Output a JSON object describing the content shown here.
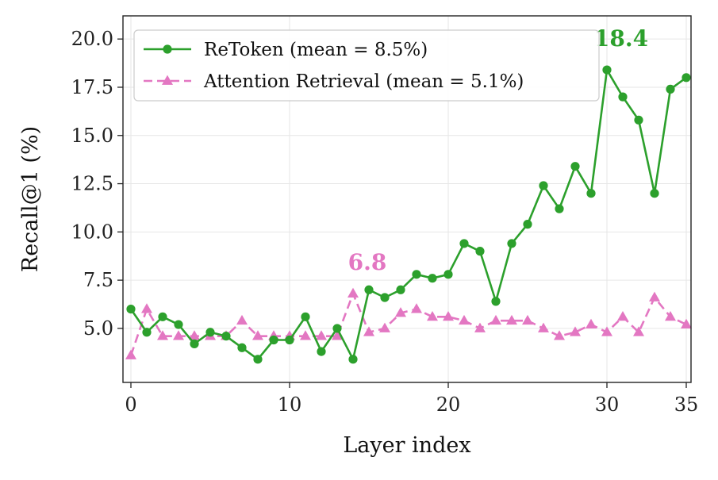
{
  "chart_data": {
    "type": "line",
    "xlabel": "Layer index",
    "ylabel": "Recall@1 (%)",
    "xlim": [
      -0.5,
      35.3
    ],
    "ylim": [
      2.2,
      21.2
    ],
    "xticks": [
      0,
      10,
      20,
      30,
      35
    ],
    "yticks": [
      5.0,
      7.5,
      10.0,
      12.5,
      15.0,
      17.5,
      20.0
    ],
    "xtick_labels": [
      "0",
      "10",
      "20",
      "30",
      "35"
    ],
    "ytick_labels": [
      "5.0",
      "7.5",
      "10.0",
      "12.5",
      "15.0",
      "17.5",
      "20.0"
    ],
    "grid": true,
    "legend_position": "top-left",
    "x": [
      0,
      1,
      2,
      3,
      4,
      5,
      6,
      7,
      8,
      9,
      10,
      11,
      12,
      13,
      14,
      15,
      16,
      17,
      18,
      19,
      20,
      21,
      22,
      23,
      24,
      25,
      26,
      27,
      28,
      29,
      30,
      31,
      32,
      33,
      34,
      35
    ],
    "series": [
      {
        "name": "ReToken (mean = 8.5%)",
        "color": "#2ca02c",
        "marker": "circle",
        "line_style": "solid",
        "values": [
          6.0,
          4.8,
          5.6,
          5.2,
          4.2,
          4.8,
          4.6,
          4.0,
          3.4,
          4.4,
          4.4,
          5.6,
          3.8,
          5.0,
          3.4,
          7.0,
          6.6,
          7.0,
          7.8,
          7.6,
          7.8,
          9.4,
          9.0,
          6.4,
          9.4,
          10.4,
          12.4,
          11.2,
          13.4,
          12.0,
          18.4,
          17.0,
          15.8,
          12.0,
          17.4,
          18.0
        ]
      },
      {
        "name": "Attention Retrieval (mean = 5.1%)",
        "color": "#e377c2",
        "marker": "triangle",
        "line_style": "dashed",
        "values": [
          3.6,
          6.0,
          4.6,
          4.6,
          4.6,
          4.6,
          4.6,
          5.4,
          4.6,
          4.6,
          4.6,
          4.6,
          4.6,
          4.6,
          6.8,
          4.8,
          5.0,
          5.8,
          6.0,
          5.6,
          5.6,
          5.4,
          5.0,
          5.4,
          5.4,
          5.4,
          5.0,
          4.6,
          4.8,
          5.2,
          4.8,
          5.6,
          4.8,
          6.6,
          5.6,
          5.2
        ]
      }
    ],
    "annotations": [
      {
        "text": "18.4",
        "series": 0,
        "x": 30,
        "y": 18.4,
        "color": "#2ca02c"
      },
      {
        "text": "6.8",
        "series": 1,
        "x": 14,
        "y": 6.8,
        "color": "#e377c2"
      }
    ]
  }
}
